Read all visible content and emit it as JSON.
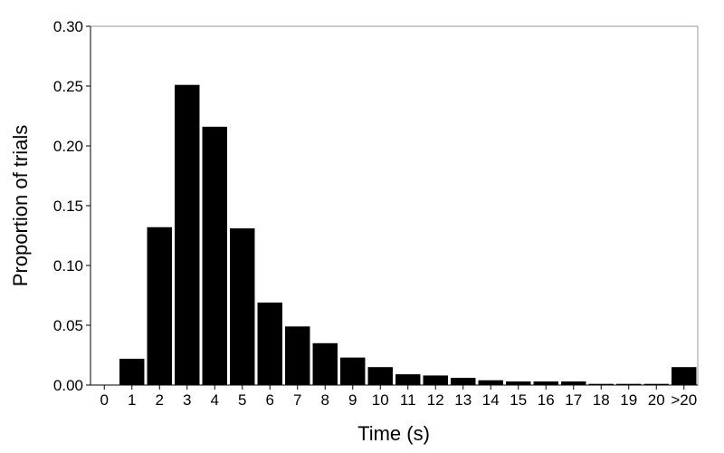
{
  "chart_data": {
    "type": "bar",
    "xlabel": "Time (s)",
    "ylabel": "Proportion of trials",
    "ylim": [
      0,
      0.3
    ],
    "yticks": [
      "0.00",
      "0.05",
      "0.10",
      "0.15",
      "0.20",
      "0.25",
      "0.30"
    ],
    "categories": [
      "0",
      "1",
      "2",
      "3",
      "4",
      "5",
      "6",
      "7",
      "8",
      "9",
      "10",
      "11",
      "12",
      "13",
      "14",
      "15",
      "16",
      "17",
      "18",
      "19",
      "20",
      ">20"
    ],
    "values": [
      0.0,
      0.022,
      0.132,
      0.251,
      0.216,
      0.131,
      0.069,
      0.049,
      0.035,
      0.023,
      0.015,
      0.009,
      0.008,
      0.006,
      0.004,
      0.003,
      0.003,
      0.003,
      0.001,
      0.001,
      0.001,
      0.015
    ],
    "bar_color": "#000000",
    "grid": false
  }
}
